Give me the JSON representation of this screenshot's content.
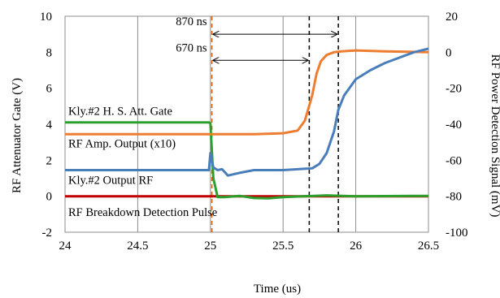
{
  "chart_data": {
    "type": "line",
    "xlabel": "Time (us)",
    "ylabel_left": "RF Attenuator Gate (V)",
    "ylabel_right": "RF Power Detection Signal (mV)",
    "xlim": [
      24,
      26.5
    ],
    "ylim_left": [
      -2,
      10
    ],
    "ylim_right": [
      -100,
      20
    ],
    "x_ticks": [
      "24",
      "24.5",
      "25",
      "25.5",
      "26",
      "26.5"
    ],
    "y_left_ticks": [
      "-2",
      "0",
      "2",
      "4",
      "6",
      "8",
      "10"
    ],
    "y_right_ticks": [
      "-100",
      "-80",
      "-60",
      "-40",
      "-20",
      "0",
      "20"
    ],
    "grid": "vertical",
    "series": [
      {
        "name": "Kly.#2 H. S. Att. Gate",
        "axis": "left",
        "color": "#2ca02c",
        "x": [
          24.0,
          24.99,
          25.0,
          25.02,
          25.05,
          25.1,
          25.2,
          25.3,
          25.4,
          25.5,
          25.8,
          26.0,
          26.5
        ],
        "y": [
          4.1,
          4.1,
          4.05,
          1.0,
          -0.05,
          -0.05,
          0.02,
          -0.1,
          -0.12,
          -0.05,
          0.05,
          0.0,
          0.02
        ]
      },
      {
        "name": "RF Amp. Output (x10)",
        "axis": "left",
        "color": "#ed7d31",
        "x": [
          24.0,
          24.5,
          25.0,
          25.3,
          25.5,
          25.6,
          25.65,
          25.7,
          25.73,
          25.76,
          25.8,
          25.85,
          25.9,
          26.0,
          26.2,
          26.5
        ],
        "y": [
          3.45,
          3.45,
          3.45,
          3.45,
          3.5,
          3.65,
          4.2,
          5.6,
          6.8,
          7.5,
          7.85,
          8.0,
          8.05,
          8.1,
          8.05,
          8.0
        ]
      },
      {
        "name": "Kly.#2 Output RF",
        "axis": "left",
        "color": "#4a7ebb",
        "x": [
          24.0,
          24.5,
          24.99,
          25.0,
          25.02,
          25.05,
          25.08,
          25.12,
          25.2,
          25.3,
          25.5,
          25.7,
          25.75,
          25.8,
          25.85,
          25.88,
          25.92,
          26.0,
          26.1,
          26.2,
          26.3,
          26.4,
          26.5
        ],
        "y": [
          1.45,
          1.45,
          1.45,
          2.4,
          1.6,
          1.45,
          1.5,
          1.15,
          1.3,
          1.45,
          1.45,
          1.55,
          1.8,
          2.4,
          3.6,
          4.8,
          5.6,
          6.5,
          7.0,
          7.4,
          7.7,
          8.0,
          8.2
        ]
      },
      {
        "name": "RF Breakdown Detection Pulse",
        "axis": "left",
        "color": "#c00000",
        "x": [
          24.0,
          26.5
        ],
        "y": [
          0.0,
          0.0
        ]
      }
    ],
    "markers": [
      {
        "x": 25.01,
        "style": "dashed",
        "color": "#c55a11"
      },
      {
        "x": 25.68,
        "style": "dashed",
        "color": "#000000"
      },
      {
        "x": 25.88,
        "style": "dashed",
        "color": "#000000"
      }
    ],
    "annotations": [
      {
        "text": "870 ns",
        "arrow_from": 25.01,
        "arrow_to": 25.88,
        "y": 9.0
      },
      {
        "text": "670 ns",
        "arrow_from": 25.01,
        "arrow_to": 25.68,
        "y": 7.55
      }
    ]
  }
}
